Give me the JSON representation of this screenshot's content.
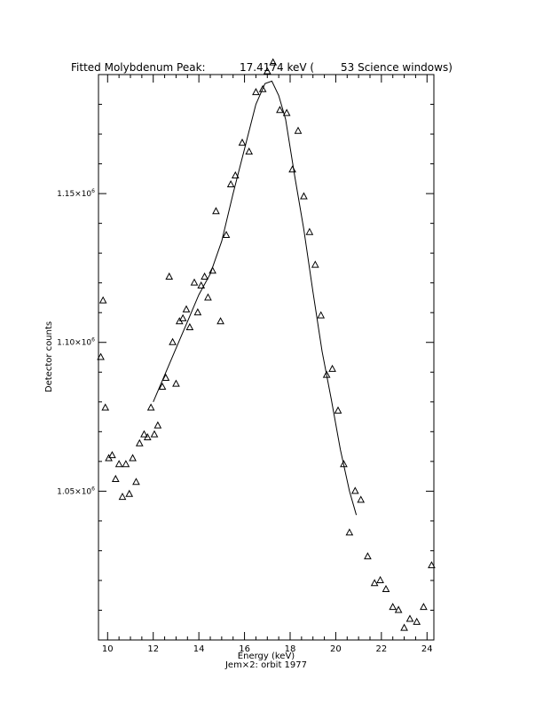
{
  "chart_data": {
    "type": "scatter",
    "title_left": "Fitted Molybdenum Peak:",
    "title_value": "17.4174 keV (",
    "title_right": "53 Science windows)",
    "xlabel": "Energy (keV)",
    "ylabel": "Detector counts",
    "footer": "Jem×2: orbit 1977",
    "xlim": [
      9.6,
      24.3
    ],
    "ylim": [
      1000000,
      1190000
    ],
    "x_ticks": [
      10,
      12,
      14,
      16,
      18,
      20,
      22,
      24
    ],
    "x_tick_labels": [
      "10",
      "12",
      "14",
      "16",
      "18",
      "20",
      "22",
      "24"
    ],
    "y_ticks": [
      1050000,
      1100000,
      1150000
    ],
    "y_tick_labels": [
      {
        "mant": "1.05×10",
        "exp": "6"
      },
      {
        "mant": "1.10×10",
        "exp": "6"
      },
      {
        "mant": "1.15×10",
        "exp": "6"
      }
    ],
    "x_minor_step": 0.5,
    "y_minor_step": 10000,
    "series": [
      {
        "marker": "triangle-open",
        "points": [
          [
            9.7,
            1095000
          ],
          [
            9.8,
            1114000
          ],
          [
            9.9,
            1078000
          ],
          [
            10.05,
            1061000
          ],
          [
            10.2,
            1062000
          ],
          [
            10.35,
            1054000
          ],
          [
            10.5,
            1059000
          ],
          [
            10.65,
            1048000
          ],
          [
            10.8,
            1059000
          ],
          [
            10.95,
            1049000
          ],
          [
            11.1,
            1061000
          ],
          [
            11.25,
            1053000
          ],
          [
            11.4,
            1066000
          ],
          [
            11.6,
            1069000
          ],
          [
            11.75,
            1068000
          ],
          [
            11.9,
            1078000
          ],
          [
            12.05,
            1069000
          ],
          [
            12.2,
            1072000
          ],
          [
            12.4,
            1085000
          ],
          [
            12.55,
            1088000
          ],
          [
            12.7,
            1122000
          ],
          [
            12.85,
            1100000
          ],
          [
            13.0,
            1086000
          ],
          [
            13.15,
            1107000
          ],
          [
            13.3,
            1108000
          ],
          [
            13.45,
            1111000
          ],
          [
            13.6,
            1105000
          ],
          [
            13.8,
            1120000
          ],
          [
            13.95,
            1110000
          ],
          [
            14.1,
            1119000
          ],
          [
            14.25,
            1122000
          ],
          [
            14.4,
            1115000
          ],
          [
            14.6,
            1124000
          ],
          [
            14.75,
            1144000
          ],
          [
            14.95,
            1107000
          ],
          [
            15.2,
            1136000
          ],
          [
            15.4,
            1153000
          ],
          [
            15.6,
            1156000
          ],
          [
            15.9,
            1167000
          ],
          [
            16.2,
            1164000
          ],
          [
            16.5,
            1184000
          ],
          [
            16.8,
            1185000
          ],
          [
            17.0,
            1191000
          ],
          [
            17.25,
            1194000
          ],
          [
            17.55,
            1178000
          ],
          [
            17.85,
            1177000
          ],
          [
            18.1,
            1158000
          ],
          [
            18.35,
            1171000
          ],
          [
            18.6,
            1149000
          ],
          [
            18.85,
            1137000
          ],
          [
            19.1,
            1126000
          ],
          [
            19.35,
            1109000
          ],
          [
            19.6,
            1089000
          ],
          [
            19.85,
            1091000
          ],
          [
            20.1,
            1077000
          ],
          [
            20.35,
            1059000
          ],
          [
            20.6,
            1036000
          ],
          [
            20.85,
            1050000
          ],
          [
            21.1,
            1047000
          ],
          [
            21.4,
            1028000
          ],
          [
            21.7,
            1019000
          ],
          [
            21.95,
            1020000
          ],
          [
            22.2,
            1017000
          ],
          [
            22.5,
            1011000
          ],
          [
            22.75,
            1010000
          ],
          [
            23.0,
            1004000
          ],
          [
            23.25,
            1007000
          ],
          [
            23.55,
            1006000
          ],
          [
            23.85,
            1011000
          ],
          [
            24.2,
            1025000
          ]
        ]
      },
      {
        "marker": "none",
        "line": "solid",
        "points": [
          [
            12.0,
            1080000
          ],
          [
            12.5,
            1089000
          ],
          [
            13.0,
            1098000
          ],
          [
            13.5,
            1107000
          ],
          [
            14.0,
            1116000
          ],
          [
            14.5,
            1123000
          ],
          [
            15.0,
            1134000
          ],
          [
            15.5,
            1150000
          ],
          [
            16.0,
            1165000
          ],
          [
            16.5,
            1180000
          ],
          [
            16.9,
            1187000
          ],
          [
            17.2,
            1187800
          ],
          [
            17.5,
            1183000
          ],
          [
            17.8,
            1175000
          ],
          [
            18.2,
            1156000
          ],
          [
            18.6,
            1138000
          ],
          [
            19.0,
            1117000
          ],
          [
            19.4,
            1097000
          ],
          [
            19.8,
            1081000
          ],
          [
            20.2,
            1064000
          ],
          [
            20.6,
            1050000
          ],
          [
            20.9,
            1042000
          ]
        ]
      }
    ]
  }
}
